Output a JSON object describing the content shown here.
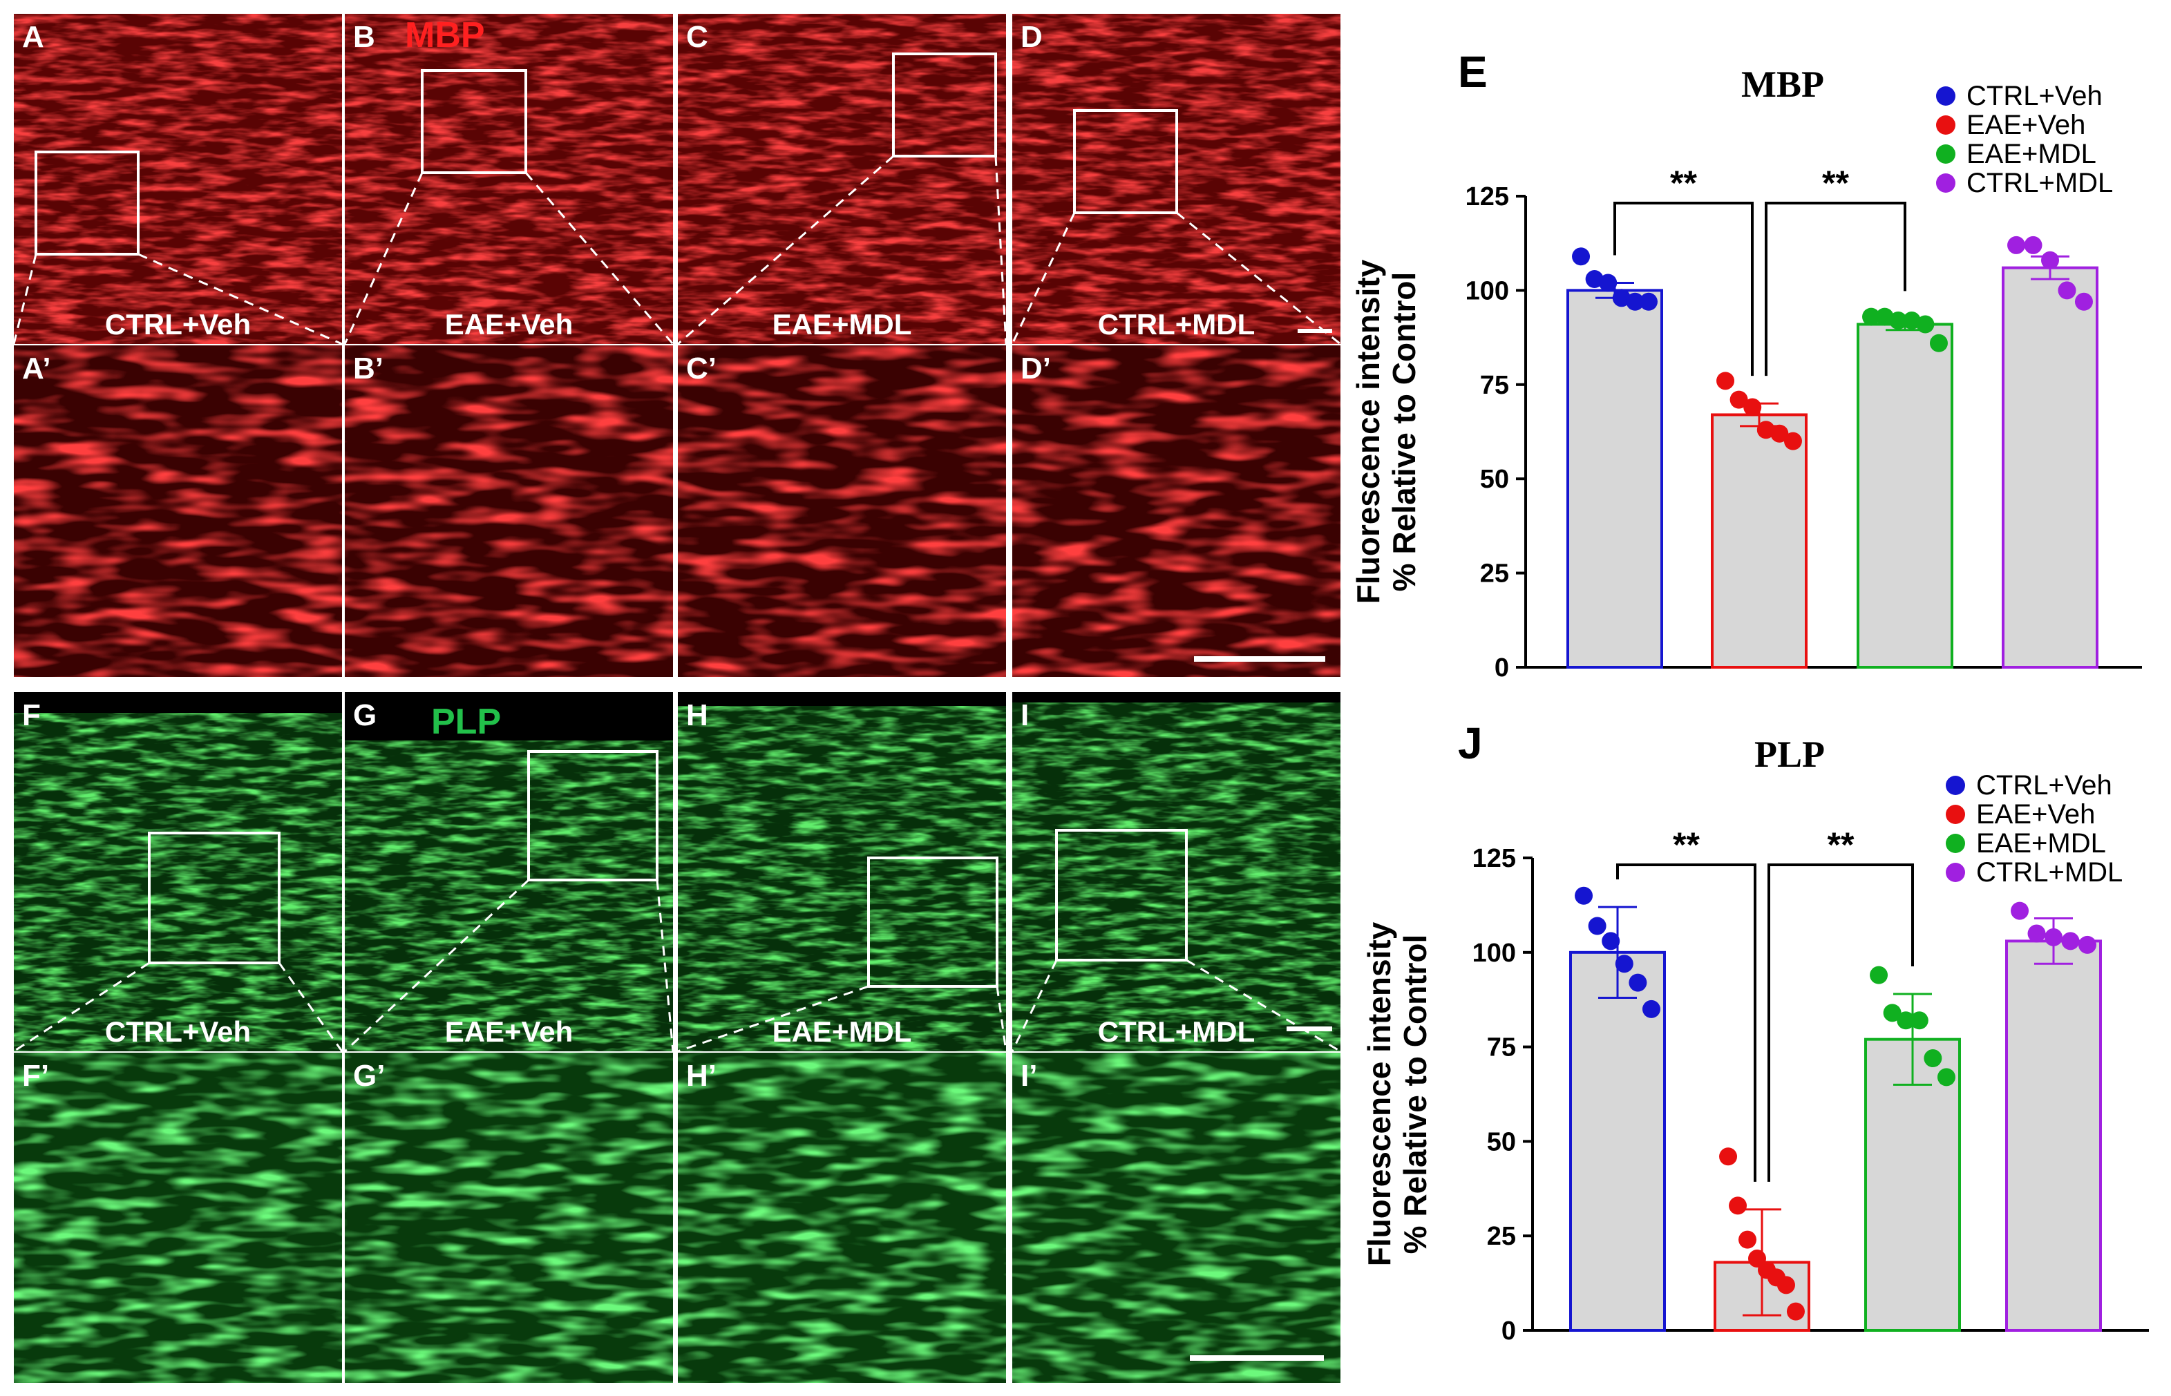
{
  "figure": {
    "stain_top": "MBP",
    "stain_bottom": "PLP",
    "colors": {
      "red_stain": "#e01010",
      "green_stain": "#22b83a"
    },
    "top_overview": [
      {
        "letter": "A",
        "group": "CTRL+Veh"
      },
      {
        "letter": "B",
        "group": "EAE+Veh"
      },
      {
        "letter": "C",
        "group": "EAE+MDL"
      },
      {
        "letter": "D",
        "group": "CTRL+MDL"
      }
    ],
    "top_zoom": [
      "A’",
      "B’",
      "C’",
      "D’"
    ],
    "bottom_overview": [
      {
        "letter": "F",
        "group": "CTRL+Veh"
      },
      {
        "letter": "G",
        "group": "EAE+Veh"
      },
      {
        "letter": "H",
        "group": "EAE+MDL"
      },
      {
        "letter": "I",
        "group": "CTRL+MDL"
      }
    ],
    "bottom_zoom": [
      "F’",
      "G’",
      "H’",
      "I’"
    ]
  },
  "chart_data": [
    {
      "type": "bar",
      "panel": "E",
      "title": "MBP",
      "ylabel_line1": "Fluorescence intensity",
      "ylabel_line2": "% Relative to Control",
      "ylim": [
        0,
        125
      ],
      "yticks": [
        "0",
        "25",
        "50",
        "75",
        "100",
        "125"
      ],
      "categories": [
        "CTRL+Veh",
        "EAE+Veh",
        "EAE+MDL",
        "CTRL+MDL"
      ],
      "colors": [
        "#1515d0",
        "#e81010",
        "#10b020",
        "#a020e0"
      ],
      "values": [
        100,
        67,
        91,
        106
      ],
      "errors": [
        2,
        3,
        1.5,
        3
      ],
      "points": [
        [
          109,
          103,
          102,
          98,
          97,
          97
        ],
        [
          76,
          71,
          69,
          63,
          62,
          60
        ],
        [
          93,
          93,
          92,
          92,
          91,
          86
        ],
        [
          112,
          112,
          108,
          100,
          97
        ]
      ],
      "significance": [
        {
          "from": 0,
          "to": 1,
          "label": "**"
        },
        {
          "from": 1,
          "to": 2,
          "label": "**"
        }
      ]
    },
    {
      "type": "bar",
      "panel": "J",
      "title": "PLP",
      "ylabel_line1": "Fluorescence intensity",
      "ylabel_line2": "% Relative to Control",
      "ylim": [
        0,
        125
      ],
      "yticks": [
        "0",
        "25",
        "50",
        "75",
        "100",
        "125"
      ],
      "categories": [
        "CTRL+Veh",
        "EAE+Veh",
        "EAE+MDL",
        "CTRL+MDL"
      ],
      "colors": [
        "#1515d0",
        "#e81010",
        "#10b020",
        "#a020e0"
      ],
      "values": [
        100,
        18,
        77,
        103
      ],
      "errors": [
        12,
        14,
        12,
        6
      ],
      "points": [
        [
          115,
          107,
          103,
          97,
          92,
          85
        ],
        [
          46,
          33,
          24,
          19,
          16,
          14,
          12,
          5
        ],
        [
          94,
          84,
          82,
          82,
          72,
          67
        ],
        [
          111,
          105,
          104,
          103,
          102
        ]
      ],
      "significance": [
        {
          "from": 0,
          "to": 1,
          "label": "**"
        },
        {
          "from": 1,
          "to": 2,
          "label": "**"
        }
      ]
    }
  ]
}
